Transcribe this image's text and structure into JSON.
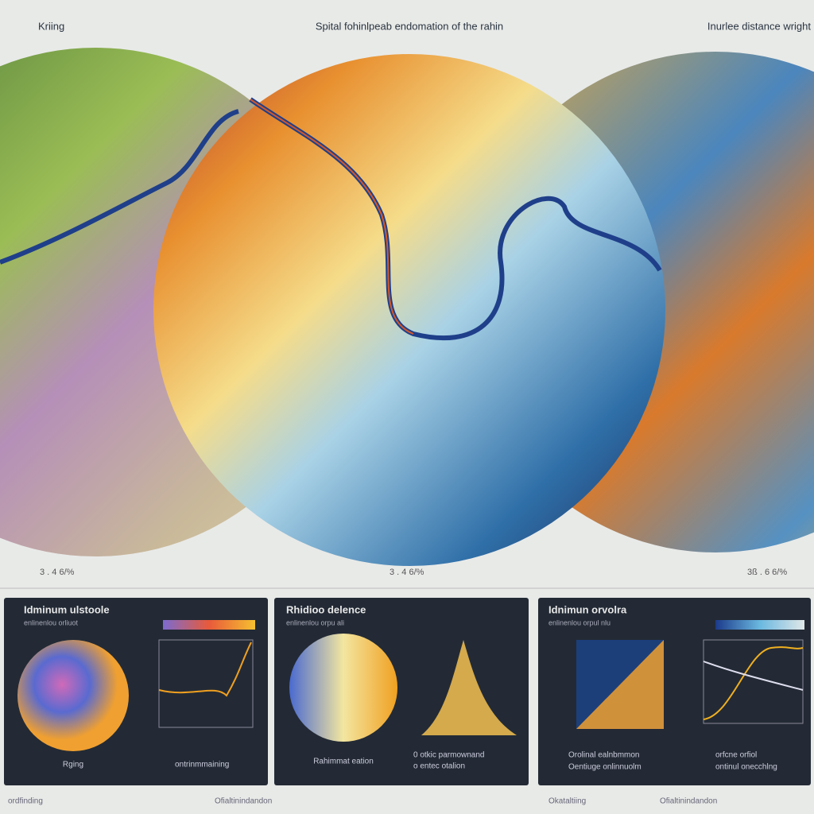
{
  "header": {
    "left": "Kriing",
    "center": "Spital fohinlpeab endomation of the rahin",
    "right": "Inurlee distance wright"
  },
  "maps": {
    "scale_labels": [
      "3 . 4 6/%",
      "3 . 4 6/%",
      "3ß . 6 6/%"
    ]
  },
  "panels": [
    {
      "title": "Idminum ulstoole",
      "subtitle": "enlinenlou orliuot",
      "label": "Rging",
      "legend": [
        "ontrinmmaining"
      ]
    },
    {
      "title": "Rhidioo delence",
      "subtitle": "enlinenlou orpu ali",
      "label": "Rahimmat eation",
      "legend": [
        "0 otkic parmownand",
        "o entec otalion"
      ]
    },
    {
      "title": "Idnimun orvolra",
      "subtitle": "enlinenlou orpul nlu",
      "label": "",
      "legend": [
        "Orolinal ealnbmmon",
        "Oentiuge onlinnuolm",
        "orfcne orfiol",
        "ontinul onecchlng"
      ]
    }
  ],
  "footer": [
    "ordfinding",
    "Ofialtinindandon",
    "Okataltiing",
    "Ofialtinindandon"
  ]
}
